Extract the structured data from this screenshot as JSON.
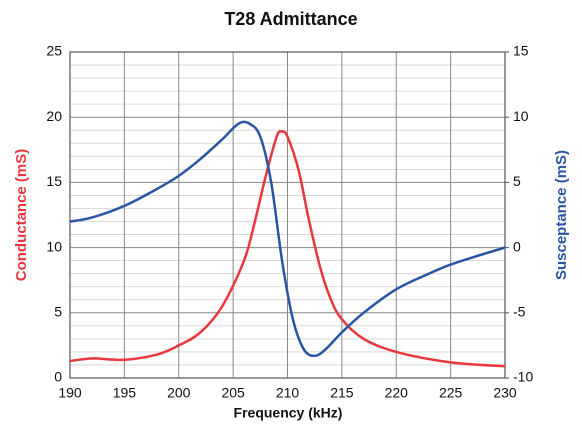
{
  "chart_data": {
    "type": "line",
    "title": "T28 Admittance",
    "x_label": "Frequency (kHz)",
    "y_label": "Conductance (mS)",
    "y2_label": "Susceptance (mS)",
    "xlim": [
      190,
      230
    ],
    "xticks": [
      190,
      195,
      200,
      205,
      210,
      215,
      220,
      225,
      230
    ],
    "ylim": [
      0,
      25
    ],
    "yticks": [
      0,
      5,
      10,
      15,
      20,
      25
    ],
    "yminorticks": [
      1,
      2,
      3,
      4,
      6,
      7,
      8,
      9,
      11,
      12,
      13,
      14,
      16,
      17,
      18,
      19,
      21,
      22,
      23,
      24
    ],
    "y2lim": [
      -10,
      15
    ],
    "y2ticks": [
      -10,
      -5,
      0,
      5,
      10,
      15
    ],
    "grid": true,
    "series": [
      {
        "name": "Conductance",
        "color": "#e8383d",
        "x": [
          190,
          192,
          195,
          198,
          200,
          202,
          204,
          206,
          207,
          208,
          209,
          209.5,
          210,
          211,
          212,
          213,
          214,
          215,
          217,
          220,
          225,
          230
        ],
        "values": [
          1.3,
          1.5,
          1.4,
          1.8,
          2.5,
          3.5,
          5.5,
          9,
          12,
          15.5,
          18.5,
          18.9,
          18.5,
          16,
          12,
          8.5,
          6,
          4.5,
          3,
          2,
          1.2,
          0.9
        ]
      },
      {
        "name": "Susceptance",
        "color": "#2a55a5",
        "axis": "y2",
        "x": [
          190,
          192,
          195,
          198,
          200,
          202,
          204,
          205.5,
          206.5,
          207.5,
          208.5,
          209.5,
          210.5,
          211.5,
          212.5,
          213.5,
          215,
          217,
          220,
          223,
          225,
          228,
          230
        ],
        "values": [
          2.0,
          2.3,
          3.2,
          4.5,
          5.5,
          6.8,
          8.3,
          9.5,
          9.5,
          8.5,
          5,
          -1,
          -5.5,
          -7.8,
          -8.3,
          -7.8,
          -6.5,
          -5,
          -3.2,
          -2,
          -1.3,
          -0.5,
          0
        ]
      }
    ]
  }
}
